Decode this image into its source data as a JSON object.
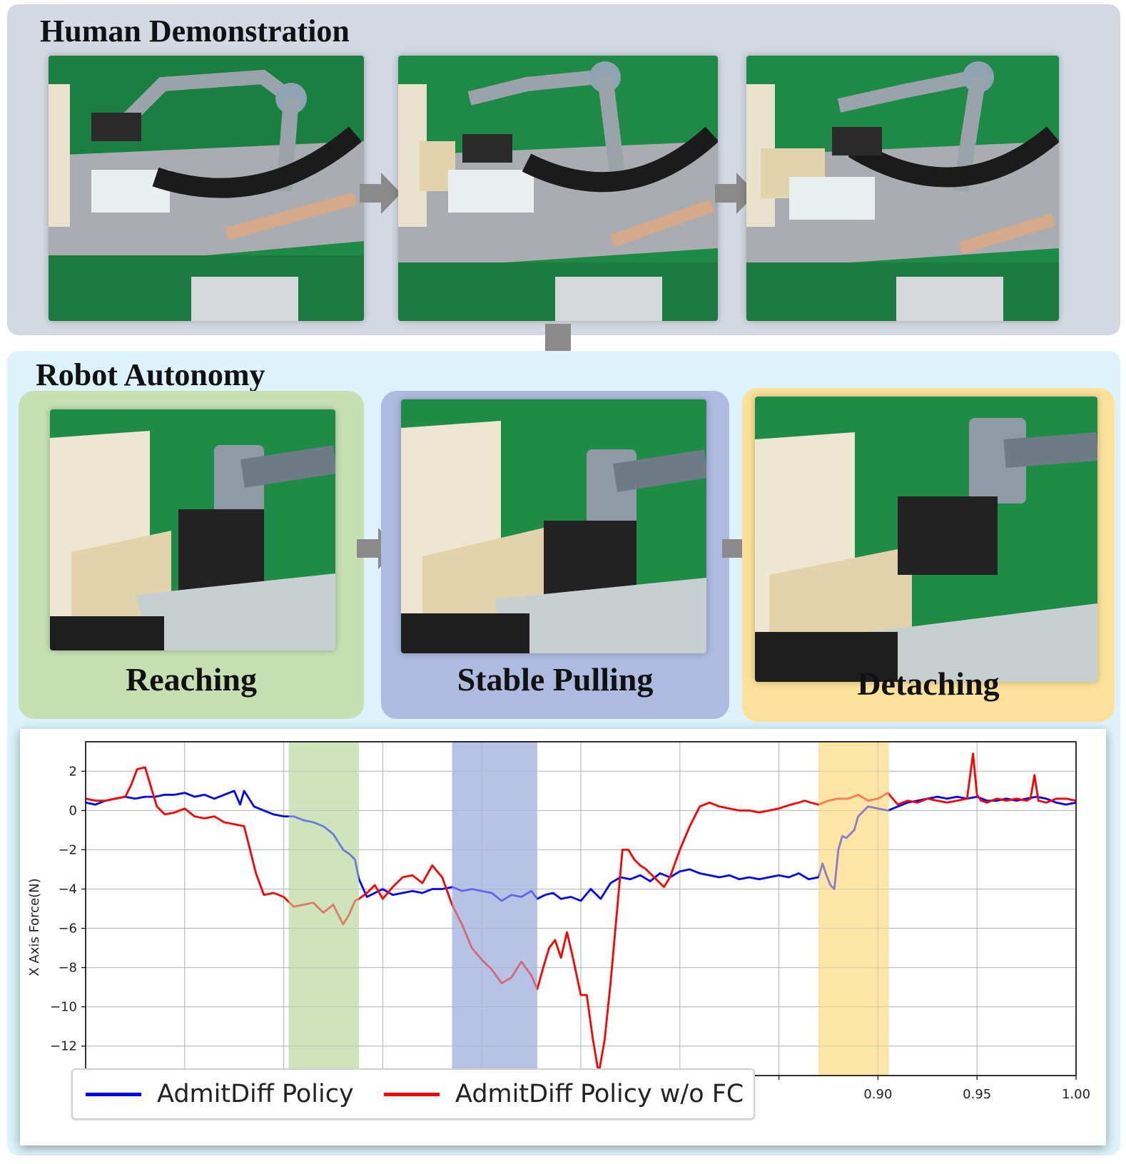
{
  "human_demonstration": {
    "title": "Human Demonstration"
  },
  "robot_autonomy": {
    "title": "Robot Autonomy",
    "stages": [
      {
        "label": "Reaching",
        "color": "#c6e0b4"
      },
      {
        "label": "Stable Pulling",
        "color": "#aebbe0"
      },
      {
        "label": "Detaching",
        "color": "#fbe19a"
      }
    ]
  },
  "chart_data": {
    "type": "line",
    "ylabel": "X Axis Force(N)",
    "xlabel": "",
    "ylim": [
      -13.5,
      3.5
    ],
    "y_ticks": [
      2,
      0,
      -2,
      -4,
      -6,
      -8,
      -10,
      -12
    ],
    "y_tick_labels": [
      "2",
      "0",
      "−2",
      "−4",
      "−6",
      "−8",
      "−10",
      "−12"
    ],
    "xlim": [
      0.5,
      1.0
    ],
    "x_ticks": [
      0.55,
      0.6,
      0.65,
      0.7,
      0.75,
      0.8,
      0.85,
      0.9,
      0.95,
      1.0
    ],
    "x_tick_labels": [
      "",
      "",
      "",
      "",
      "",
      "",
      "",
      "0.90",
      "0.95",
      "1.00"
    ],
    "grid": true,
    "legend_position": "bottom-left",
    "shaded_regions": [
      {
        "stage": "Reaching",
        "from": 0.6025,
        "to": 0.638,
        "color": "#c6e0b4"
      },
      {
        "stage": "Stable Pulling",
        "from": 0.685,
        "to": 0.728,
        "color": "#aebbe0"
      },
      {
        "stage": "Detaching",
        "from": 0.87,
        "to": 0.9055,
        "color": "#fbe19a"
      }
    ],
    "series": [
      {
        "name": "AdmitDiff Policy",
        "color": "#0000ff",
        "x": [
          0.5,
          0.505,
          0.51,
          0.515,
          0.52,
          0.525,
          0.53,
          0.535,
          0.54,
          0.545,
          0.55,
          0.555,
          0.56,
          0.565,
          0.57,
          0.575,
          0.578,
          0.58,
          0.585,
          0.59,
          0.595,
          0.6,
          0.605,
          0.61,
          0.615,
          0.62,
          0.625,
          0.63,
          0.633,
          0.636,
          0.638,
          0.642,
          0.646,
          0.65,
          0.655,
          0.66,
          0.665,
          0.67,
          0.675,
          0.68,
          0.685,
          0.69,
          0.695,
          0.7,
          0.705,
          0.71,
          0.715,
          0.72,
          0.725,
          0.728,
          0.732,
          0.736,
          0.74,
          0.745,
          0.75,
          0.755,
          0.76,
          0.765,
          0.77,
          0.775,
          0.78,
          0.785,
          0.79,
          0.795,
          0.8,
          0.805,
          0.81,
          0.815,
          0.82,
          0.825,
          0.83,
          0.835,
          0.84,
          0.845,
          0.85,
          0.855,
          0.86,
          0.865,
          0.87,
          0.872,
          0.874,
          0.876,
          0.878,
          0.88,
          0.882,
          0.884,
          0.886,
          0.888,
          0.89,
          0.895,
          0.9,
          0.905,
          0.91,
          0.915,
          0.92,
          0.925,
          0.93,
          0.935,
          0.94,
          0.945,
          0.95,
          0.955,
          0.96,
          0.965,
          0.97,
          0.975,
          0.98,
          0.985,
          0.99,
          0.995,
          1.0
        ],
        "y": [
          0.4,
          0.3,
          0.5,
          0.6,
          0.7,
          0.6,
          0.7,
          0.7,
          0.8,
          0.8,
          0.9,
          0.7,
          0.8,
          0.6,
          0.8,
          1.0,
          0.3,
          1.0,
          0.2,
          0.0,
          -0.2,
          -0.3,
          -0.3,
          -0.5,
          -0.6,
          -0.8,
          -1.2,
          -2.0,
          -2.2,
          -2.5,
          -3.5,
          -4.4,
          -4.2,
          -4.0,
          -4.3,
          -4.2,
          -4.1,
          -4.2,
          -4.0,
          -4.0,
          -3.9,
          -4.1,
          -4.0,
          -4.1,
          -4.2,
          -4.6,
          -4.3,
          -4.4,
          -4.1,
          -4.5,
          -4.3,
          -4.2,
          -4.5,
          -4.4,
          -4.6,
          -4.0,
          -4.5,
          -3.7,
          -3.4,
          -3.5,
          -3.3,
          -3.6,
          -3.2,
          -3.4,
          -3.1,
          -3.0,
          -3.2,
          -3.3,
          -3.4,
          -3.3,
          -3.5,
          -3.4,
          -3.5,
          -3.4,
          -3.3,
          -3.4,
          -3.2,
          -3.5,
          -3.4,
          -2.7,
          -3.3,
          -3.8,
          -4.0,
          -2.0,
          -1.3,
          -1.4,
          -1.2,
          -1.0,
          -0.3,
          0.2,
          0.1,
          0.0,
          0.2,
          0.4,
          0.5,
          0.6,
          0.7,
          0.6,
          0.7,
          0.6,
          0.7,
          0.5,
          0.5,
          0.6,
          0.5,
          0.6,
          0.7,
          0.6,
          0.4,
          0.3,
          0.4
        ]
      },
      {
        "name": "AdmitDiff Policy w/o FC",
        "color": "#ff0000",
        "x": [
          0.5,
          0.505,
          0.51,
          0.515,
          0.52,
          0.523,
          0.526,
          0.53,
          0.533,
          0.536,
          0.54,
          0.545,
          0.55,
          0.555,
          0.56,
          0.565,
          0.57,
          0.575,
          0.58,
          0.583,
          0.586,
          0.59,
          0.595,
          0.6,
          0.605,
          0.61,
          0.615,
          0.62,
          0.625,
          0.63,
          0.633,
          0.636,
          0.638,
          0.642,
          0.646,
          0.65,
          0.655,
          0.66,
          0.665,
          0.67,
          0.675,
          0.68,
          0.685,
          0.69,
          0.695,
          0.7,
          0.705,
          0.71,
          0.715,
          0.72,
          0.725,
          0.728,
          0.731,
          0.734,
          0.737,
          0.74,
          0.743,
          0.746,
          0.75,
          0.753,
          0.756,
          0.759,
          0.762,
          0.765,
          0.768,
          0.771,
          0.774,
          0.777,
          0.78,
          0.783,
          0.786,
          0.789,
          0.792,
          0.795,
          0.8,
          0.805,
          0.81,
          0.815,
          0.82,
          0.825,
          0.83,
          0.835,
          0.84,
          0.845,
          0.85,
          0.853,
          0.856,
          0.86,
          0.863,
          0.866,
          0.87,
          0.875,
          0.88,
          0.885,
          0.89,
          0.895,
          0.9,
          0.905,
          0.91,
          0.915,
          0.92,
          0.925,
          0.93,
          0.935,
          0.94,
          0.945,
          0.948,
          0.95,
          0.952,
          0.955,
          0.96,
          0.965,
          0.97,
          0.975,
          0.977,
          0.979,
          0.981,
          0.985,
          0.99,
          0.995,
          1.0
        ],
        "y": [
          0.6,
          0.5,
          0.5,
          0.6,
          0.7,
          1.3,
          2.1,
          2.2,
          1.2,
          0.2,
          -0.2,
          -0.1,
          0.1,
          -0.3,
          -0.4,
          -0.3,
          -0.6,
          -0.7,
          -0.8,
          -2.0,
          -3.2,
          -4.3,
          -4.2,
          -4.4,
          -4.9,
          -4.8,
          -4.7,
          -5.2,
          -4.8,
          -5.8,
          -5.3,
          -4.6,
          -4.5,
          -4.2,
          -3.8,
          -4.5,
          -3.9,
          -3.4,
          -3.3,
          -3.7,
          -2.8,
          -3.4,
          -4.8,
          -5.8,
          -7.0,
          -7.6,
          -8.1,
          -8.8,
          -8.5,
          -7.7,
          -8.4,
          -9.1,
          -8.0,
          -7.0,
          -6.6,
          -7.5,
          -6.2,
          -7.5,
          -9.4,
          -9.4,
          -11.6,
          -13.4,
          -11.7,
          -8.8,
          -5.4,
          -2.0,
          -2.0,
          -2.5,
          -2.8,
          -3.0,
          -3.3,
          -3.6,
          -3.9,
          -3.4,
          -2.0,
          -0.8,
          0.2,
          0.4,
          0.2,
          0.1,
          0.0,
          0.0,
          -0.1,
          0.0,
          0.1,
          0.2,
          0.3,
          0.4,
          0.5,
          0.4,
          0.3,
          0.5,
          0.6,
          0.6,
          0.8,
          0.5,
          0.6,
          0.9,
          0.3,
          0.5,
          0.4,
          0.6,
          0.5,
          0.4,
          0.5,
          0.6,
          2.9,
          0.8,
          0.5,
          0.4,
          0.6,
          0.5,
          0.6,
          0.5,
          0.6,
          1.8,
          0.5,
          0.4,
          0.6,
          0.6,
          0.5
        ]
      }
    ]
  }
}
